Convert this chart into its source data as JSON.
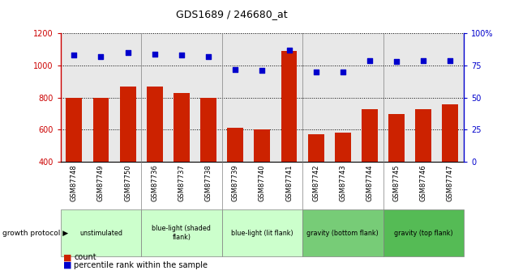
{
  "title": "GDS1689 / 246680_at",
  "categories": [
    "GSM87748",
    "GSM87749",
    "GSM87750",
    "GSM87736",
    "GSM87737",
    "GSM87738",
    "GSM87739",
    "GSM87740",
    "GSM87741",
    "GSM87742",
    "GSM87743",
    "GSM87744",
    "GSM87745",
    "GSM87746",
    "GSM87747"
  ],
  "count_values": [
    800,
    800,
    870,
    870,
    830,
    800,
    610,
    600,
    1090,
    570,
    580,
    730,
    700,
    730,
    760
  ],
  "percentile_values": [
    83,
    82,
    85,
    84,
    83,
    82,
    72,
    71,
    87,
    70,
    70,
    79,
    78,
    79,
    79
  ],
  "ylim_left": [
    400,
    1200
  ],
  "ylim_right": [
    0,
    100
  ],
  "yticks_left": [
    400,
    600,
    800,
    1000,
    1200
  ],
  "yticks_right": [
    0,
    25,
    50,
    75,
    100
  ],
  "group_defs": [
    {
      "label": "unstimulated",
      "start": 0,
      "end": 3,
      "color": "#ccffcc"
    },
    {
      "label": "blue-light (shaded\nflank)",
      "start": 3,
      "end": 6,
      "color": "#ccffcc"
    },
    {
      "label": "blue-light (lit flank)",
      "start": 6,
      "end": 9,
      "color": "#ccffcc"
    },
    {
      "label": "gravity (bottom flank)",
      "start": 9,
      "end": 12,
      "color": "#77cc77"
    },
    {
      "label": "gravity (top flank)",
      "start": 12,
      "end": 15,
      "color": "#55bb55"
    }
  ],
  "group_borders": [
    3,
    6,
    9,
    12
  ],
  "bar_color": "#cc2200",
  "dot_color": "#0000cc",
  "left_axis_color": "#cc0000",
  "right_axis_color": "#0000cc",
  "plot_bg_color": "#e8e8e8",
  "xtick_bg_color": "#cccccc",
  "grid_color": "#000000",
  "legend_count_label": "count",
  "legend_pct_label": "percentile rank within the sample",
  "growth_protocol_label": "growth protocol"
}
